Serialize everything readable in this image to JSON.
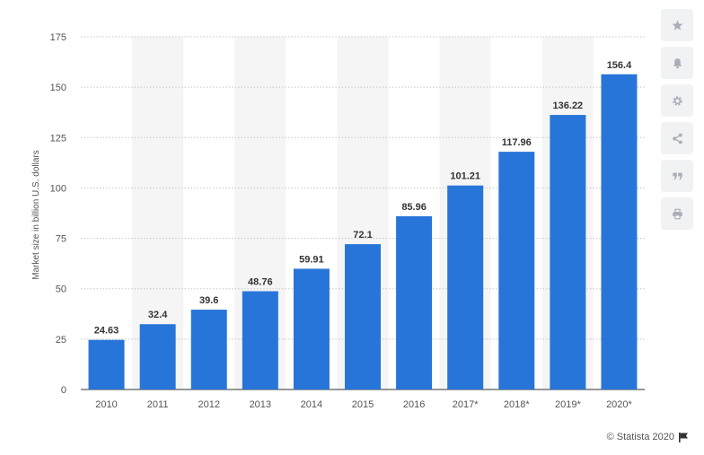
{
  "chart_data": {
    "type": "bar",
    "title": "",
    "xlabel": "",
    "ylabel": "Market size in billion U.S. dollars",
    "categories": [
      "2010",
      "2011",
      "2012",
      "2013",
      "2014",
      "2015",
      "2016",
      "2017*",
      "2018*",
      "2019*",
      "2020*"
    ],
    "values": [
      24.63,
      32.4,
      39.6,
      48.76,
      59.91,
      72.1,
      85.96,
      101.21,
      117.96,
      136.22,
      156.4
    ],
    "value_labels": [
      "24.63",
      "32.4",
      "39.6",
      "48.76",
      "59.91",
      "72.1",
      "85.96",
      "101.21",
      "117.96",
      "136.22",
      "156.4"
    ],
    "y_ticks": [
      "0",
      "25",
      "50",
      "75",
      "100",
      "125",
      "150",
      "175"
    ],
    "ylim": [
      0,
      175
    ],
    "grid": "horizontal dotted",
    "legend": "none",
    "bar_color": "#2775d9",
    "band_color": "#f5f5f5"
  },
  "toolbar": {
    "icons": [
      "star-icon",
      "bell-icon",
      "gear-icon",
      "share-icon",
      "quote-icon",
      "print-icon"
    ],
    "icon_color": "#a9aeb7"
  },
  "credit": {
    "text": "© Statista 2020"
  }
}
